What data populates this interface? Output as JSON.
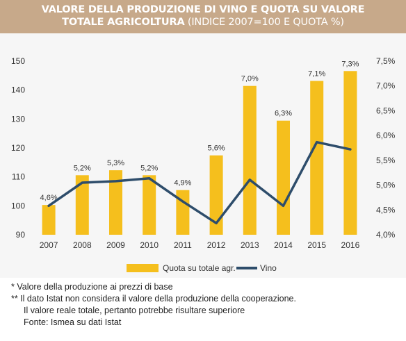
{
  "header": {
    "title_line1": "VALORE DELLA PRODUZIONE DI VINO E QUOTA SU VALORE",
    "title_line2_bold": "TOTALE AGRICOLTURA",
    "title_line2_light": " (INDICE 2007=100 E QUOTA %)"
  },
  "chart_data": {
    "type": "bar",
    "categories": [
      "2007",
      "2008",
      "2009",
      "2010",
      "2011",
      "2012",
      "2013",
      "2014",
      "2015",
      "2016"
    ],
    "series": [
      {
        "name": "Quota su totale agr.",
        "kind": "bar",
        "axis": "right",
        "values": [
          4.6,
          5.2,
          5.3,
          5.2,
          4.9,
          5.6,
          7.0,
          6.3,
          7.1,
          7.3
        ],
        "labels": [
          "4,6%",
          "5,2%",
          "5,3%",
          "5,2%",
          "4,9%",
          "5,6%",
          "7,0%",
          "6,3%",
          "7,1%",
          "7,3%"
        ],
        "color": "#f5bf1d"
      },
      {
        "name": "Vino",
        "kind": "line",
        "axis": "left",
        "values": [
          100,
          108,
          108.5,
          109.5,
          101.5,
          94,
          109,
          100,
          122,
          119.5
        ],
        "color": "#2e4d6b"
      }
    ],
    "left_axis": {
      "min": 90,
      "max": 150,
      "ticks": [
        "90",
        "100",
        "110",
        "120",
        "130",
        "140",
        "150"
      ]
    },
    "right_axis": {
      "min": 4.0,
      "max": 7.5,
      "ticks": [
        "4,0%",
        "4,5%",
        "5,0%",
        "5,5%",
        "6,0%",
        "6,5%",
        "7,0%",
        "7,5%"
      ]
    },
    "legend_position": "bottom",
    "grid": false
  },
  "notes": {
    "note1": "*  Valore della produzione ai prezzi di base",
    "note2": "** Il dato Istat non considera il valore della produzione della cooperazione.",
    "note3": "Il valore reale totale, pertanto potrebbe risultare superiore",
    "note4": "Fonte: Ismea su dati Istat"
  }
}
